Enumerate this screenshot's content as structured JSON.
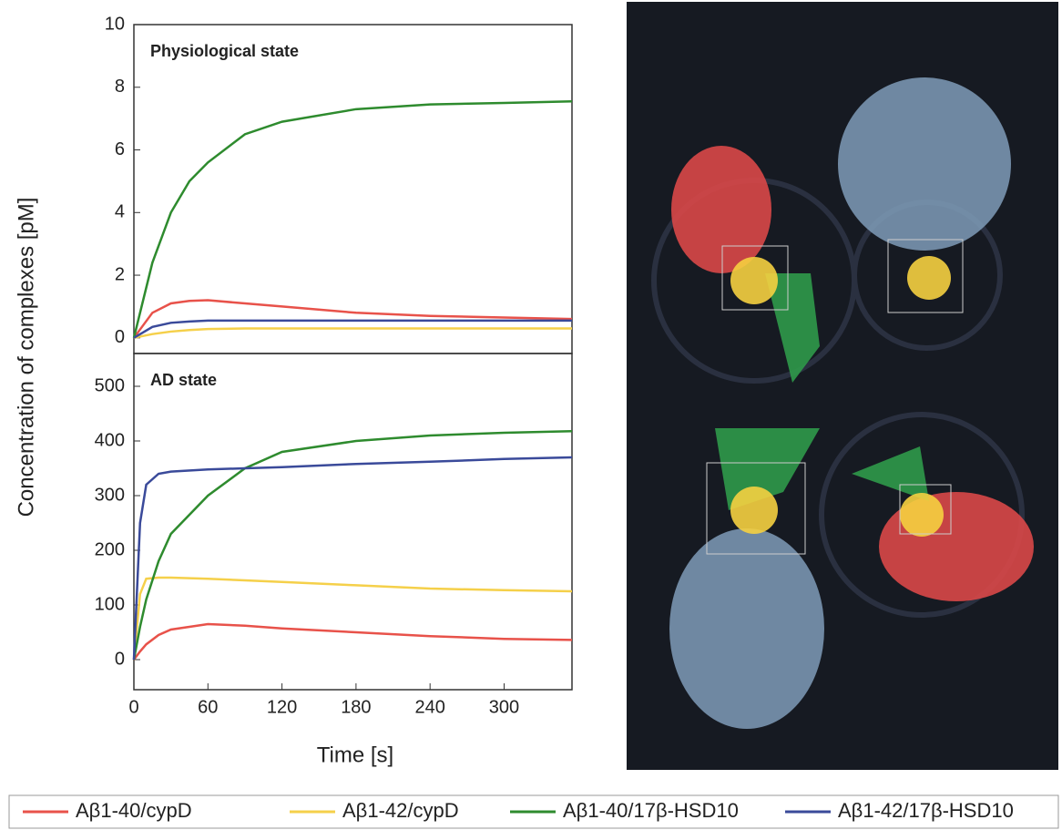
{
  "chart_data": [
    {
      "type": "line",
      "title": "Physiological state",
      "ylabel": "Concentration of complexes [pM]",
      "x": [
        0,
        15,
        30,
        45,
        60,
        90,
        120,
        180,
        240,
        300,
        355
      ],
      "xlim": [
        0,
        355
      ],
      "ylim": [
        -0.5,
        10
      ],
      "yticks": [
        0,
        2,
        4,
        6,
        8,
        10
      ],
      "series": [
        {
          "color": "#e8524a",
          "values": [
            0,
            0.8,
            1.1,
            1.18,
            1.2,
            1.1,
            1.0,
            0.8,
            0.7,
            0.65,
            0.6
          ]
        },
        {
          "color": "#f5d04a",
          "values": [
            0,
            0.12,
            0.2,
            0.25,
            0.28,
            0.3,
            0.3,
            0.3,
            0.3,
            0.3,
            0.3
          ]
        },
        {
          "color": "#2e8b2e",
          "values": [
            0,
            2.4,
            4.0,
            5.0,
            5.6,
            6.5,
            6.9,
            7.3,
            7.45,
            7.5,
            7.55
          ]
        },
        {
          "color": "#3a4a9a",
          "values": [
            0,
            0.35,
            0.48,
            0.52,
            0.55,
            0.55,
            0.55,
            0.55,
            0.55,
            0.55,
            0.55
          ]
        }
      ]
    },
    {
      "type": "line",
      "title": "AD state",
      "xlabel": "Time [s]",
      "x": [
        0,
        5,
        10,
        20,
        30,
        60,
        90,
        120,
        180,
        240,
        300,
        355
      ],
      "xlim": [
        0,
        355
      ],
      "ylim": [
        -55,
        560
      ],
      "xticks": [
        0,
        60,
        120,
        180,
        240,
        300
      ],
      "yticks": [
        0,
        100,
        200,
        300,
        400,
        500
      ],
      "series": [
        {
          "name": "Aβ1-40/cypD",
          "color": "#e8524a",
          "values": [
            0,
            15,
            28,
            45,
            55,
            65,
            62,
            57,
            50,
            43,
            38,
            36
          ]
        },
        {
          "name": "Aβ1-42/cypD",
          "color": "#f5d04a",
          "values": [
            0,
            120,
            148,
            150,
            150,
            148,
            145,
            142,
            136,
            130,
            127,
            125
          ]
        },
        {
          "name": "Aβ1-40/17β-HSD10",
          "color": "#2e8b2e",
          "values": [
            0,
            60,
            110,
            180,
            230,
            300,
            350,
            380,
            400,
            410,
            415,
            418
          ]
        },
        {
          "name": "Aβ1-42/17β-HSD10",
          "color": "#3a4a9a",
          "values": [
            0,
            250,
            320,
            340,
            344,
            348,
            350,
            352,
            358,
            362,
            367,
            370
          ]
        }
      ]
    }
  ]
}
